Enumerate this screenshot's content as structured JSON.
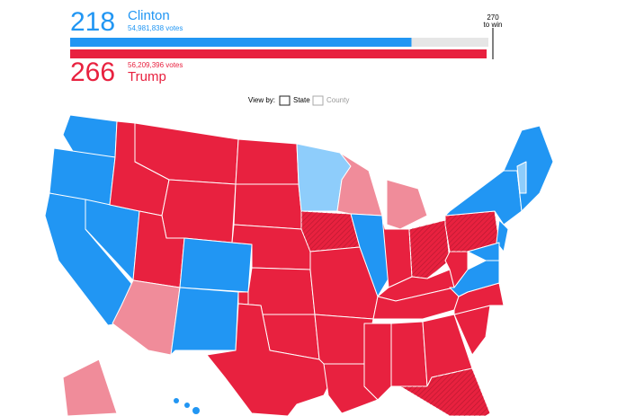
{
  "clinton": {
    "electoral_votes": 218,
    "name": "Clinton",
    "popular_votes": "54,981,838 votes",
    "color": "#2196f3"
  },
  "trump": {
    "electoral_votes": 266,
    "name": "Trump",
    "popular_votes": "56,209,396 votes",
    "color": "#e8213f"
  },
  "threshold": {
    "value": 270,
    "label": "to win"
  },
  "view_toggle": {
    "label": "View by:",
    "options": [
      "State",
      "County"
    ]
  }
}
